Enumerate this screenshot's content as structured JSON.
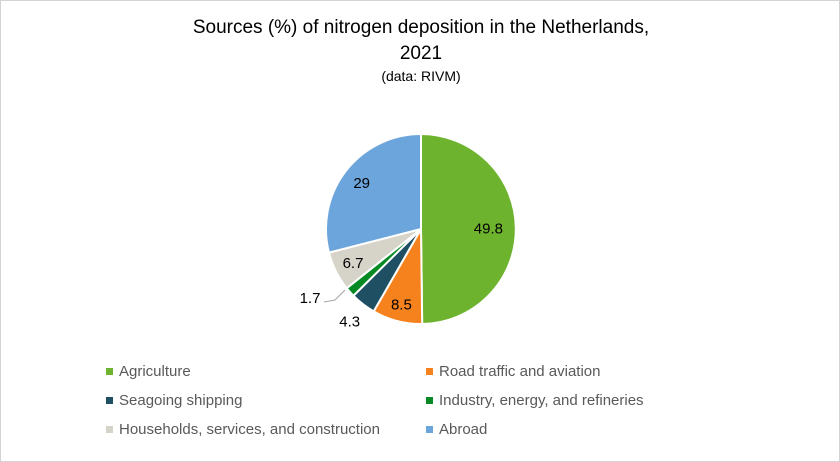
{
  "header": {
    "title_line1": "Sources (%) of nitrogen deposition in the Netherlands,",
    "title_line2": "2021",
    "subtitle": "(data: RIVM)"
  },
  "chart_data": {
    "type": "pie",
    "title": "Sources (%) of nitrogen deposition in the Netherlands, 2021",
    "subtitle": "(data: RIVM)",
    "unit": "%",
    "total": 100,
    "start_angle_deg": 0,
    "direction": "clockwise",
    "legend_position": "bottom",
    "legend_columns": 2,
    "data_label_color": "#000000",
    "legend_text_color": "#595959",
    "slices": [
      {
        "label": "Agriculture",
        "value": 49.8,
        "value_label": "49.8",
        "color": "#6EB32D"
      },
      {
        "label": "Road traffic and aviation",
        "value": 8.5,
        "value_label": "8.5",
        "color": "#F6821E"
      },
      {
        "label": "Seagoing shipping",
        "value": 4.3,
        "value_label": "4.3",
        "color": "#1E4F63"
      },
      {
        "label": "Industry, energy, and refineries",
        "value": 1.7,
        "value_label": "1.7",
        "color": "#078A23"
      },
      {
        "label": "Households, services, and construction",
        "value": 6.7,
        "value_label": "6.7",
        "color": "#D6D3C8"
      },
      {
        "label": "Abroad",
        "value": 29,
        "value_label": "29",
        "color": "#6CA5DC"
      }
    ]
  }
}
